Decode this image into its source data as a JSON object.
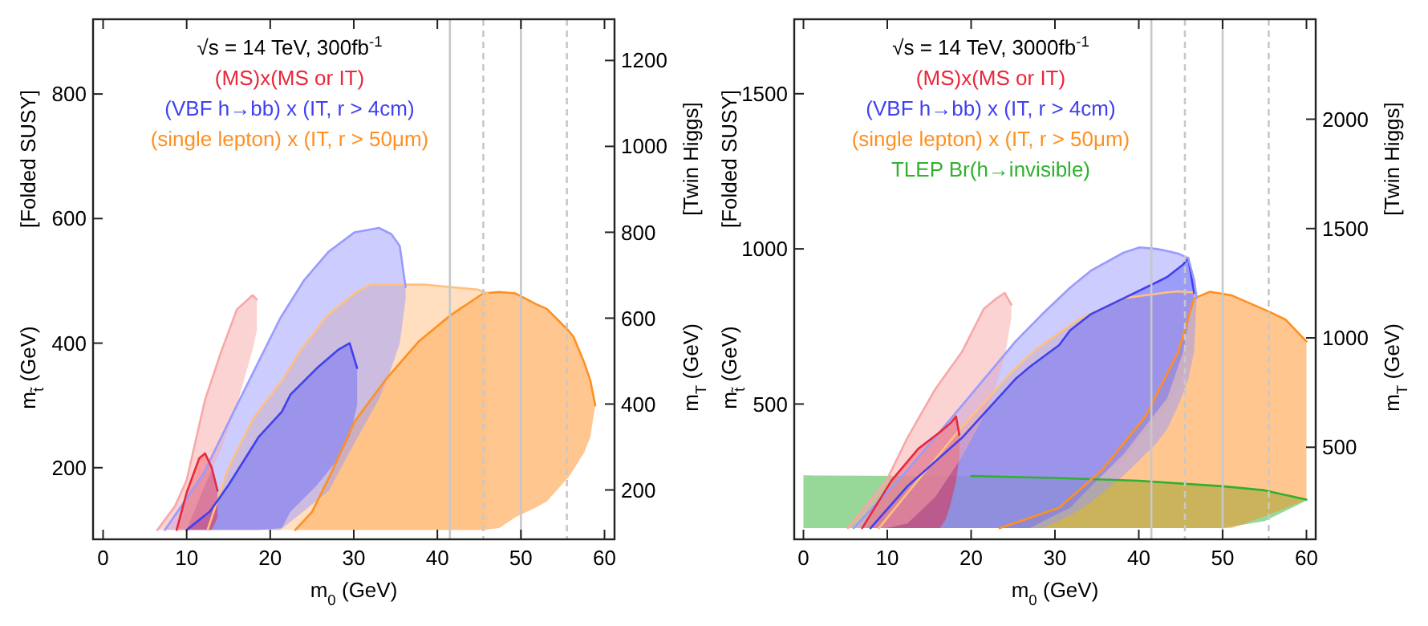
{
  "chart_data": [
    {
      "type": "line",
      "title": "√s = 14 TeV, 300fb$^{-1}$",
      "xlabel": "m$_{0}$ (GeV)",
      "ylabel": "m$_{t̃}$ (GeV)\n[Folded SUSY]",
      "y2label": "m$_{T}$ (GeV)\n[Twin Higgs]",
      "legend": "top",
      "xlim": [
        -1.2,
        61.2
      ],
      "xticks": [
        0,
        10,
        20,
        30,
        40,
        50,
        60
      ],
      "ylim": [
        85,
        920
      ],
      "yticks": [
        200,
        400,
        600,
        800
      ],
      "y2lim": [
        85,
        1296
      ],
      "y2ticks": [
        200,
        400,
        600,
        800,
        1000,
        1200
      ],
      "ref_lines": [
        {
          "axis": "x",
          "value": 41.5,
          "color": "#c8c8c8",
          "line_style": "solid"
        },
        {
          "axis": "x",
          "value": 45.5,
          "color": "#c8c8c8",
          "line_style": "dashed"
        },
        {
          "axis": "x",
          "value": 50,
          "color": "#c8c8c8",
          "line_style": "solid"
        },
        {
          "axis": "x",
          "value": 55.5,
          "color": "#c8c8c8",
          "line_style": "dashed"
        }
      ],
      "series": [
        {
          "color": "#f7a8a8",
          "x": [
            6.5,
            8.6,
            10,
            12.2,
            14.1,
            16,
            17.9,
            18.4
          ],
          "values": [
            100,
            138,
            180,
            309,
            385,
            454,
            477,
            470
          ],
          "upper": [
            100,
            138,
            180,
            309,
            385,
            454,
            477,
            470
          ],
          "lower": [
            100,
            100,
            100,
            172,
            230,
            300,
            390,
            420
          ]
        },
        {
          "name": "(MS)x(MS or IT)",
          "color": "#e8283c",
          "x": [
            8.8,
            10,
            11.5,
            12.2,
            13,
            13.7
          ],
          "values": [
            100,
            160,
            215,
            223,
            200,
            163
          ],
          "upper": [
            100,
            160,
            215,
            223,
            200,
            163
          ],
          "lower": [
            100,
            100,
            100,
            100,
            100,
            120
          ]
        },
        {
          "color": "#9a9aff",
          "x": [
            7.4,
            12,
            16,
            21.2,
            24,
            27,
            30.1,
            33,
            34.5,
            35.5,
            36.2
          ],
          "values": [
            100,
            190,
            300,
            440,
            500,
            547,
            578,
            585,
            575,
            556,
            490
          ],
          "upper": [
            100,
            190,
            300,
            440,
            500,
            547,
            578,
            585,
            575,
            556,
            490
          ],
          "lower": [
            100,
            100,
            100,
            100,
            130,
            163,
            240,
            310,
            360,
            400,
            470
          ]
        },
        {
          "name": "(VBF h→bb) x (IT, r > 4cm)",
          "color": "#4040f0",
          "x": [
            10,
            12.8,
            15,
            18.6,
            21.4,
            22.4,
            25.6,
            28.2,
            29.5,
            30.4
          ],
          "values": [
            100,
            130,
            172,
            249,
            290,
            317,
            360,
            390,
            400,
            360
          ],
          "upper": [
            100,
            130,
            172,
            249,
            290,
            317,
            360,
            390,
            400,
            360
          ],
          "lower": [
            100,
            100,
            100,
            100,
            103,
            129,
            172,
            215,
            250,
            300
          ]
        },
        {
          "color": "#ffc080",
          "x": [
            12.5,
            15,
            18,
            21.4,
            23.7,
            26.9,
            30.1,
            32,
            38.4,
            44.8,
            46
          ],
          "values": [
            100,
            200,
            280,
            340,
            390,
            445,
            480,
            494,
            494,
            486,
            480
          ],
          "upper": [
            100,
            200,
            280,
            340,
            390,
            445,
            480,
            494,
            494,
            486,
            480
          ],
          "lower": [
            100,
            100,
            100,
            100,
            100,
            100,
            100,
            100,
            100,
            100,
            100
          ]
        },
        {
          "name": "(single lepton) x (IT, r > 50μm)",
          "color": "#ff9020",
          "x": [
            23,
            25,
            27.5,
            30.1,
            33.9,
            37.8,
            41.6,
            45.5,
            47.4,
            49.3,
            51.9,
            53.1,
            55.7,
            56.3,
            57.6,
            58.3,
            58.9
          ],
          "values": [
            100,
            129,
            197,
            274,
            343,
            403,
            445,
            480,
            482,
            480,
            462,
            455,
            420,
            410,
            368,
            340,
            300
          ],
          "upper": [
            100,
            129,
            197,
            274,
            343,
            403,
            445,
            480,
            482,
            480,
            462,
            455,
            420,
            410,
            368,
            340,
            300
          ],
          "lower": [
            100,
            100,
            100,
            100,
            100,
            100,
            100,
            100,
            103,
            120,
            137,
            146,
            185,
            197,
            225,
            249,
            300
          ]
        }
      ]
    },
    {
      "type": "line",
      "title": "√s = 14 TeV, 3000fb$^{-1}$",
      "xlabel": "m$_{0}$ (GeV)",
      "ylabel": "m$_{t̃}$ (GeV)\n[Folded SUSY]",
      "y2label": "m$_{T}$ (GeV)\n[Twin Higgs]",
      "legend": "top",
      "xlim": [
        -1.1,
        61.1
      ],
      "xticks": [
        0,
        10,
        20,
        30,
        40,
        50,
        60
      ],
      "ylim": [
        64,
        1740
      ],
      "yticks": [
        500,
        1000,
        1500
      ],
      "y2lim": [
        79,
        2457
      ],
      "y2ticks": [
        500,
        1000,
        1500,
        2000
      ],
      "ref_lines": [
        {
          "axis": "x",
          "value": 41.5,
          "color": "#c8c8c8",
          "line_style": "solid"
        },
        {
          "axis": "x",
          "value": 45.5,
          "color": "#c8c8c8",
          "line_style": "dashed"
        },
        {
          "axis": "x",
          "value": 50,
          "color": "#c8c8c8",
          "line_style": "solid"
        },
        {
          "axis": "x",
          "value": 55.5,
          "color": "#c8c8c8",
          "line_style": "dashed"
        }
      ],
      "series": [
        {
          "color": "#f7a8a8",
          "x": [
            5.3,
            9.9,
            12.4,
            15.7,
            18.9,
            21.5,
            23,
            24,
            24.8
          ],
          "values": [
            100,
            253,
            391,
            547,
            668,
            806,
            840,
            858,
            820
          ],
          "upper": [
            100,
            253,
            391,
            547,
            668,
            806,
            840,
            858,
            820
          ],
          "lower": [
            100,
            100,
            115,
            200,
            330,
            460,
            566,
            650,
            780
          ]
        },
        {
          "name": "(MS)x(MS or IT)",
          "color": "#e8283c",
          "x": [
            7,
            10.5,
            13.7,
            16.3,
            17,
            17.6,
            18.2,
            18.6
          ],
          "values": [
            100,
            253,
            356,
            410,
            426,
            440,
            460,
            400
          ],
          "upper": [
            100,
            253,
            356,
            410,
            426,
            440,
            460,
            400
          ],
          "lower": [
            100,
            100,
            100,
            100,
            130,
            183,
            250,
            330
          ]
        },
        {
          "color": "#9a9aff",
          "x": [
            6,
            12.4,
            18.9,
            25.3,
            28.5,
            31.8,
            34.3,
            38.2,
            40.1,
            42.1,
            43.4,
            44.7,
            45.9,
            46.6,
            46.9
          ],
          "values": [
            100,
            287,
            495,
            702,
            790,
            875,
            930,
            988,
            1005,
            1000,
            993,
            985,
            970,
            900,
            841
          ],
          "upper": [
            100,
            287,
            495,
            702,
            790,
            875,
            930,
            988,
            1005,
            1000,
            993,
            985,
            970,
            900,
            841
          ],
          "lower": [
            100,
            100,
            100,
            100,
            100,
            140,
            183,
            270,
            320,
            374,
            420,
            495,
            580,
            668,
            841
          ]
        },
        {
          "name": "(VBF h→bb) x (IT, r > 4cm)",
          "color": "#4040f0",
          "x": [
            8,
            12.4,
            18.9,
            25.3,
            27,
            30.5,
            31.8,
            34.3,
            38.2,
            42.7,
            43.4,
            45.3,
            45.9,
            46.6
          ],
          "values": [
            100,
            235,
            391,
            581,
            620,
            690,
            737,
            790,
            841,
            900,
            910,
            950,
            970,
            858
          ],
          "upper": [
            100,
            235,
            391,
            581,
            620,
            690,
            737,
            790,
            841,
            900,
            910,
            950,
            970,
            858
          ],
          "lower": [
            100,
            100,
            100,
            100,
            100,
            149,
            165,
            235,
            339,
            495,
            520,
            668,
            760,
            858
          ]
        },
        {
          "color": "#ffc080",
          "x": [
            9,
            12,
            18.9,
            23.4,
            25.3,
            27.9,
            31.8,
            33,
            38.2,
            43.4,
            44.7,
            46.4,
            46.9
          ],
          "values": [
            100,
            200,
            426,
            560,
            616,
            680,
            754,
            775,
            841,
            860,
            863,
            860,
            858
          ],
          "upper": [
            100,
            200,
            426,
            560,
            616,
            680,
            754,
            775,
            841,
            860,
            863,
            860,
            858
          ],
          "lower": [
            100,
            100,
            100,
            100,
            110,
            149,
            190,
            218,
            322,
            495,
            560,
            668,
            858
          ]
        },
        {
          "name": "(single lepton) x (IT, r > 50μm)",
          "color": "#ff9020",
          "x": [
            23.4,
            30.5,
            35.6,
            40.8,
            44.7,
            46.6,
            48.5,
            51.1,
            55.6,
            57.5,
            60
          ],
          "values": [
            100,
            166,
            287,
            460,
            668,
            841,
            862,
            850,
            797,
            772,
            702
          ],
          "upper": [
            100,
            166,
            287,
            460,
            668,
            841,
            862,
            850,
            797,
            772,
            702
          ],
          "lower": [
            100,
            100,
            100,
            100,
            100,
            100,
            100,
            100,
            145,
            165,
            192
          ]
        },
        {
          "name": "TLEP Br(h→invisible)",
          "color": "#30b030",
          "x": [
            0,
            20,
            30,
            40,
            50,
            55,
            60
          ],
          "values": [
            null,
            268,
            262,
            253,
            235,
            222,
            192
          ],
          "upper": [
            270,
            268,
            262,
            253,
            235,
            222,
            192
          ],
          "lower": [
            100,
            100,
            100,
            100,
            100,
            123,
            189
          ]
        }
      ]
    }
  ]
}
